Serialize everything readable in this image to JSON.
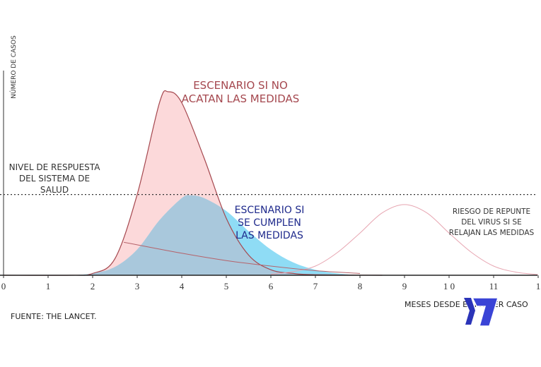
{
  "chart_data": {
    "type": "area",
    "ylabel": "NÚMERO DE CASOS",
    "xlabel": "MESES DESDE EL PRIMER CASO",
    "source": "FUENTE: THE LANCET.",
    "xlim": [
      0,
      12
    ],
    "ylim": [
      0,
      100
    ],
    "x_ticks": [
      "0",
      "1",
      "2",
      "3",
      "4",
      "5",
      "6",
      "7",
      "8",
      "9",
      "1 0",
      "11",
      "1"
    ],
    "grid": false,
    "threshold": {
      "value": 44,
      "label_lines": [
        "NIVEL DE RESPUESTA",
        "DEL SISTEMA DE",
        "SALUD"
      ],
      "style": "dotted"
    },
    "series": [
      {
        "key": "no_measures",
        "label_lines": [
          "ESCENARIO SI NO",
          "ACATAN LAS MEDIDAS"
        ],
        "fill": "#fcd9da",
        "stroke": "#a5484f",
        "label_color": "#a5484f",
        "points": [
          [
            0,
            0
          ],
          [
            1.5,
            0
          ],
          [
            2,
            1
          ],
          [
            2.5,
            9
          ],
          [
            3,
            44
          ],
          [
            3.5,
            94
          ],
          [
            3.7,
            100
          ],
          [
            4,
            94
          ],
          [
            4.5,
            64
          ],
          [
            5,
            31
          ],
          [
            5.5,
            11
          ],
          [
            6,
            3
          ],
          [
            6.5,
            1
          ],
          [
            7,
            0.3
          ],
          [
            8.5,
            0
          ]
        ]
      },
      {
        "key": "measures",
        "label_lines": [
          "ESCENARIO SI",
          "SE CUMPLEN",
          "LAS MEDIDAS"
        ],
        "fill": "#8fdcf5",
        "stroke": "none",
        "label_color": "#1f2a8c",
        "points": [
          [
            1.5,
            0
          ],
          [
            2,
            1
          ],
          [
            2.5,
            4.5
          ],
          [
            3,
            14
          ],
          [
            3.5,
            30
          ],
          [
            4,
            42
          ],
          [
            4.2,
            43.5
          ],
          [
            4.5,
            42
          ],
          [
            5,
            35
          ],
          [
            5.5,
            24
          ],
          [
            6,
            14
          ],
          [
            6.5,
            7
          ],
          [
            7,
            3
          ],
          [
            7.5,
            1
          ],
          [
            8,
            0
          ]
        ]
      },
      {
        "key": "rebound",
        "label_lines": [
          "RIESGO DE REPUNTE",
          "DEL VIRUS SI SE",
          "RELAJAN LAS MEDIDAS"
        ],
        "fill": "none",
        "stroke": "#e7a5b1",
        "label_color": "#333333",
        "points": [
          [
            6,
            0.5
          ],
          [
            6.5,
            2
          ],
          [
            7,
            5
          ],
          [
            7.5,
            12.5
          ],
          [
            8,
            23
          ],
          [
            8.5,
            34
          ],
          [
            9,
            38.5
          ],
          [
            9.5,
            34
          ],
          [
            10,
            23
          ],
          [
            10.5,
            12.5
          ],
          [
            11,
            5
          ],
          [
            11.5,
            1.7
          ],
          [
            12,
            0.4
          ]
        ]
      },
      {
        "key": "decline_line",
        "fill": "none",
        "stroke": "#b5636b",
        "points": [
          [
            2.7,
            18
          ],
          [
            4,
            12
          ],
          [
            5,
            8
          ],
          [
            6,
            5
          ],
          [
            7,
            2.5
          ],
          [
            8,
            1
          ]
        ]
      }
    ],
    "overlap_color": "#a9c8dc"
  },
  "logo": {
    "text": "7",
    "color": "#2b34b8"
  }
}
